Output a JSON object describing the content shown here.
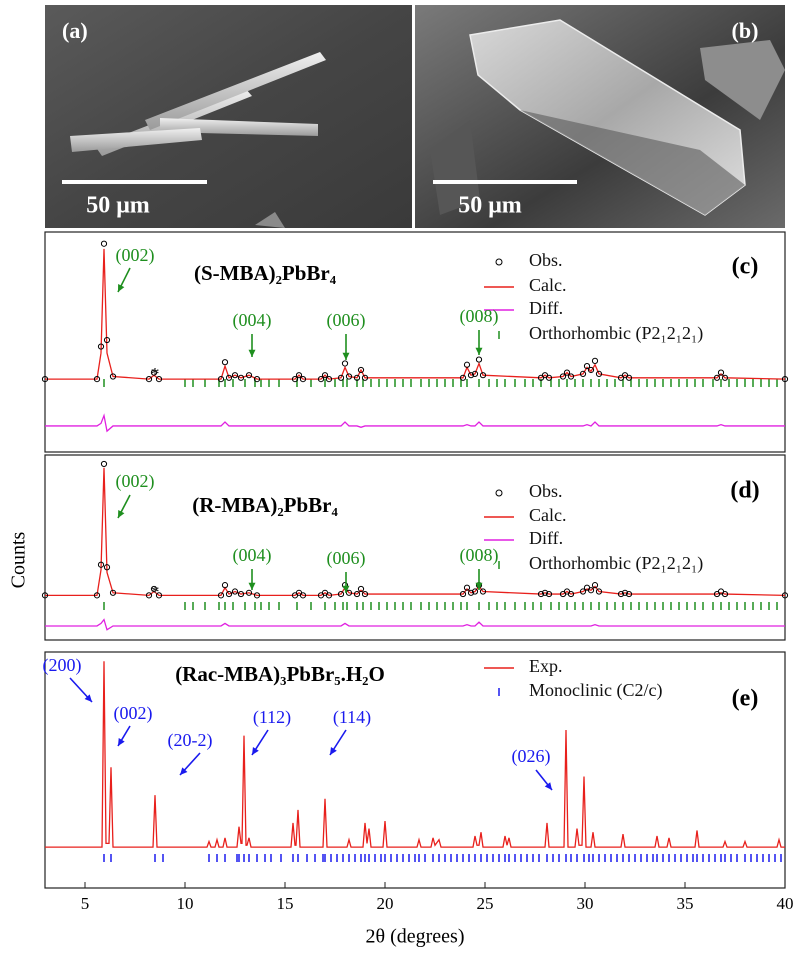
{
  "figure": {
    "images": [
      {
        "label": "(a)",
        "scale_bar": "50 μm"
      },
      {
        "label": "(b)",
        "scale_bar": "50 μm"
      }
    ]
  },
  "chart_data": [
    {
      "type": "line",
      "panel_label": "(c)",
      "title": "(S-MBA)₂PbBr₄",
      "xlim": [
        3,
        40
      ],
      "ylim": [
        -56,
        113
      ],
      "x": [
        3,
        5.6,
        5.8,
        5.95,
        6.1,
        6.4,
        8.2,
        8.45,
        8.7,
        11.8,
        12.0,
        12.2,
        12.5,
        12.8,
        13.2,
        13.6,
        15.5,
        15.7,
        15.9,
        16.8,
        17.0,
        17.2,
        17.8,
        18.0,
        18.2,
        18.6,
        18.8,
        19.0,
        23.9,
        24.1,
        24.3,
        24.5,
        24.7,
        24.9,
        27.8,
        28.0,
        28.2,
        28.9,
        29.1,
        29.3,
        29.9,
        30.1,
        30.3,
        30.5,
        30.7,
        31.8,
        32.0,
        32.2,
        36.6,
        36.8,
        37.0,
        40
      ],
      "series": [
        {
          "name": "Obs.",
          "color": "#000000",
          "marker": "circle",
          "values": [
            0,
            0,
            25,
            104,
            30,
            2,
            0,
            5,
            0,
            0,
            13,
            1,
            3,
            1,
            3,
            0,
            0,
            3,
            0,
            0,
            3,
            0,
            1,
            12,
            2,
            1,
            7,
            1,
            1,
            11,
            3,
            4,
            15,
            3,
            1,
            3,
            1,
            2,
            5,
            2,
            4,
            10,
            7,
            14,
            4,
            1,
            3,
            1,
            1,
            5,
            1,
            0
          ]
        },
        {
          "name": "Calc.",
          "color": "#e8201c",
          "values": [
            0,
            0,
            20,
            100,
            20,
            2,
            0,
            3,
            0,
            0,
            10,
            1,
            3,
            1,
            3,
            0,
            0,
            3,
            0,
            0,
            3,
            0,
            1,
            9,
            2,
            1,
            7,
            1,
            1,
            9,
            3,
            4,
            12,
            3,
            1,
            3,
            1,
            2,
            5,
            2,
            4,
            9,
            6,
            11,
            4,
            1,
            3,
            1,
            1,
            4,
            1,
            0
          ]
        },
        {
          "name": "Diff.",
          "color": "#e020e0",
          "values": [
            -36,
            -36,
            -34,
            -28,
            -40,
            -36,
            -36,
            -36,
            -36,
            -36,
            -33,
            -36,
            -36,
            -36,
            -36,
            -36,
            -36,
            -36,
            -36,
            -36,
            -36,
            -36,
            -36,
            -33,
            -36,
            -36,
            -37,
            -36,
            -36,
            -35,
            -36,
            -36,
            -33,
            -36,
            -36,
            -36,
            -36,
            -36,
            -36,
            -36,
            -36,
            -35,
            -36,
            -33,
            -36,
            -36,
            -36,
            -36,
            -36,
            -35,
            -36,
            -36
          ]
        }
      ],
      "reflections": {
        "name": "Orthorhombic (P2₁2₁2₁)",
        "color": "#1f8f1f",
        "x": [
          5.95,
          10.0,
          10.4,
          11.0,
          11.7,
          12.0,
          12.4,
          13.0,
          13.5,
          13.8,
          14.2,
          14.7,
          15.6,
          16.3,
          17.0,
          17.5,
          17.9,
          18.1,
          18.6,
          18.9,
          19.3,
          19.7,
          20.1,
          20.5,
          20.9,
          21.3,
          21.8,
          22.2,
          22.6,
          23.0,
          23.4,
          23.8,
          24.1,
          24.7,
          25.2,
          25.6,
          26.0,
          26.5,
          27.0,
          27.4,
          27.8,
          28.3,
          28.7,
          29.1,
          29.5,
          29.9,
          30.3,
          30.7,
          31.1,
          31.5,
          31.9,
          32.3,
          32.7,
          33.1,
          33.5,
          33.9,
          34.3,
          34.7,
          35.1,
          35.5,
          35.9,
          36.4,
          36.8,
          37.2,
          37.6,
          38.0,
          38.4,
          38.8,
          39.2,
          39.6
        ]
      },
      "annotation_color": "#1f8f1f",
      "annotations": [
        "(002)",
        "*",
        "(004)",
        "(006)",
        "(008)"
      ]
    },
    {
      "type": "line",
      "panel_label": "(d)",
      "title": "(R-MBA)₂PbBr₄",
      "ylabel": "Counts",
      "xlim": [
        3,
        40
      ],
      "ylim": [
        -35,
        110
      ],
      "x": [
        3,
        5.6,
        5.8,
        5.95,
        6.1,
        6.4,
        8.2,
        8.45,
        8.7,
        11.8,
        12.0,
        12.2,
        12.5,
        12.8,
        13.2,
        13.6,
        15.5,
        15.7,
        15.9,
        16.8,
        17.0,
        17.2,
        17.8,
        18.0,
        18.2,
        18.6,
        18.8,
        19.0,
        23.9,
        24.1,
        24.3,
        24.5,
        24.7,
        24.9,
        27.8,
        28.0,
        28.2,
        28.9,
        29.1,
        29.3,
        29.9,
        30.1,
        30.3,
        30.5,
        30.7,
        31.8,
        32.0,
        32.2,
        36.6,
        36.8,
        37.0,
        40
      ],
      "series": [
        {
          "name": "Obs.",
          "color": "#000000",
          "marker": "circle",
          "values": [
            0,
            0,
            24,
            103,
            22,
            2,
            0,
            5,
            0,
            0,
            8,
            1,
            3,
            1,
            2,
            0,
            0,
            2,
            0,
            0,
            2,
            0,
            1,
            8,
            2,
            1,
            5,
            1,
            1,
            6,
            2,
            3,
            8,
            3,
            1,
            2,
            1,
            1,
            3,
            1,
            3,
            6,
            4,
            8,
            3,
            1,
            2,
            1,
            1,
            3,
            1,
            0
          ]
        },
        {
          "name": "Calc.",
          "color": "#e8201c",
          "values": [
            0,
            0,
            20,
            100,
            18,
            2,
            0,
            3,
            0,
            0,
            6,
            1,
            3,
            1,
            2,
            0,
            0,
            2,
            0,
            0,
            2,
            0,
            1,
            6,
            2,
            1,
            4,
            1,
            1,
            5,
            2,
            3,
            7,
            3,
            1,
            2,
            1,
            1,
            3,
            1,
            3,
            5,
            4,
            7,
            3,
            1,
            2,
            1,
            1,
            2,
            1,
            0
          ]
        },
        {
          "name": "Diff.",
          "color": "#e020e0",
          "values": [
            -24,
            -24,
            -22,
            -19,
            -27,
            -24,
            -24,
            -24,
            -24,
            -24,
            -22,
            -24,
            -24,
            -24,
            -24,
            -24,
            -24,
            -24,
            -24,
            -24,
            -24,
            -24,
            -24,
            -22,
            -24,
            -24,
            -24,
            -24,
            -24,
            -23,
            -24,
            -24,
            -21,
            -24,
            -24,
            -24,
            -24,
            -24,
            -24,
            -24,
            -24,
            -24,
            -24,
            -23,
            -24,
            -24,
            -24,
            -24,
            -24,
            -24,
            -24,
            -24
          ]
        }
      ],
      "reflections": {
        "name": "Orthorhombic (P2₁2₁2₁)",
        "color": "#1f8f1f",
        "x": [
          5.95,
          10.0,
          10.4,
          11.0,
          11.7,
          12.0,
          12.4,
          13.0,
          13.5,
          13.8,
          14.2,
          14.7,
          15.6,
          16.3,
          17.0,
          17.5,
          17.9,
          18.1,
          18.6,
          18.9,
          19.3,
          19.7,
          20.1,
          20.5,
          20.9,
          21.3,
          21.8,
          22.2,
          22.6,
          23.0,
          23.4,
          23.8,
          24.1,
          24.7,
          25.2,
          25.6,
          26.0,
          26.5,
          27.0,
          27.4,
          27.8,
          28.3,
          28.7,
          29.1,
          29.5,
          29.9,
          30.3,
          30.7,
          31.1,
          31.5,
          31.9,
          32.3,
          32.7,
          33.1,
          33.5,
          33.9,
          34.3,
          34.7,
          35.1,
          35.5,
          35.9,
          36.4,
          36.8,
          37.2,
          37.6,
          38.0,
          38.4,
          38.8,
          39.2,
          39.6
        ]
      },
      "annotation_color": "#1f8f1f",
      "annotations": [
        "(002)",
        "*",
        "(004)",
        "(006)",
        "(008)"
      ]
    },
    {
      "type": "line",
      "panel_label": "(e)",
      "title": "(Rac-MBA)₃PbBr₅.H₂O",
      "xlabel": "2θ (degrees)",
      "xlim": [
        3,
        40
      ],
      "ylim": [
        -22,
        105
      ],
      "xticks": [
        5,
        10,
        15,
        20,
        25,
        30,
        35,
        40
      ],
      "x": [
        3,
        5.85,
        5.95,
        6.05,
        6.2,
        6.3,
        6.4,
        8.4,
        8.5,
        8.6,
        11.1,
        11.2,
        11.3,
        11.5,
        11.6,
        11.7,
        11.9,
        12.0,
        12.1,
        12.6,
        12.7,
        12.8,
        12.85,
        12.95,
        13.05,
        13.1,
        13.2,
        13.3,
        15.3,
        15.4,
        15.5,
        15.55,
        15.65,
        15.75,
        16.9,
        17.0,
        17.1,
        18.1,
        18.2,
        18.3,
        18.9,
        19.0,
        19.1,
        19.2,
        19.3,
        19.9,
        20.0,
        20.1,
        21.6,
        21.7,
        21.8,
        22.3,
        22.4,
        22.5,
        22.7,
        22.8,
        24.4,
        24.5,
        24.6,
        24.7,
        24.8,
        24.9,
        25.9,
        26.0,
        26.1,
        26.2,
        26.3,
        28.0,
        28.1,
        28.2,
        28.95,
        29.05,
        29.15,
        29.5,
        29.6,
        29.7,
        29.85,
        29.95,
        30.05,
        30.3,
        30.4,
        30.5,
        31.8,
        31.9,
        32.0,
        33.5,
        33.6,
        33.7,
        34.1,
        34.2,
        34.3,
        35.5,
        35.6,
        35.7,
        36.9,
        37.0,
        37.1,
        37.9,
        38.0,
        38.1,
        39.6,
        39.7,
        39.8,
        40
      ],
      "series": [
        {
          "name": "Exp.",
          "color": "#e8201c",
          "values": [
            0,
            0,
            100,
            2,
            2,
            43,
            0,
            0,
            28,
            0,
            0,
            3,
            0,
            0,
            4,
            0,
            0,
            5,
            0,
            0,
            11,
            2,
            2,
            60,
            1,
            1,
            5,
            0,
            0,
            13,
            1,
            1,
            20,
            0,
            0,
            26,
            0,
            0,
            4,
            0,
            0,
            13,
            2,
            10,
            0,
            0,
            14,
            0,
            0,
            4,
            0,
            0,
            5,
            1,
            4,
            0,
            0,
            6,
            1,
            1,
            8,
            0,
            0,
            6,
            1,
            5,
            0,
            0,
            13,
            0,
            0,
            63,
            0,
            0,
            10,
            1,
            1,
            38,
            0,
            0,
            8,
            0,
            0,
            7,
            0,
            0,
            6,
            0,
            0,
            5,
            0,
            0,
            9,
            0,
            0,
            3,
            0,
            0,
            3,
            0,
            0,
            4,
            0,
            0
          ]
        }
      ],
      "reflections": {
        "name": "Monoclinic (C2/c)",
        "color": "#1a1aee",
        "x": [
          5.95,
          6.3,
          8.5,
          8.9,
          11.2,
          11.6,
          12.0,
          12.6,
          12.7,
          12.95,
          13.2,
          13.6,
          14.0,
          14.3,
          14.8,
          15.4,
          15.65,
          16.1,
          16.5,
          16.9,
          17.0,
          17.3,
          17.6,
          17.9,
          18.2,
          18.5,
          18.8,
          19.0,
          19.2,
          19.5,
          19.8,
          20.0,
          20.3,
          20.6,
          20.9,
          21.2,
          21.5,
          21.7,
          22.0,
          22.4,
          22.7,
          23.0,
          23.3,
          23.6,
          23.9,
          24.2,
          24.5,
          24.8,
          25.1,
          25.4,
          25.7,
          26.0,
          26.2,
          26.5,
          26.8,
          27.1,
          27.4,
          27.7,
          28.1,
          28.4,
          28.7,
          29.05,
          29.3,
          29.6,
          29.95,
          30.2,
          30.4,
          30.7,
          31.0,
          31.3,
          31.6,
          31.9,
          32.2,
          32.5,
          32.8,
          33.1,
          33.4,
          33.6,
          33.9,
          34.2,
          34.5,
          34.8,
          35.1,
          35.4,
          35.6,
          35.9,
          36.2,
          36.5,
          36.8,
          37.0,
          37.3,
          37.6,
          38.0,
          38.3,
          38.6,
          38.9,
          39.2,
          39.5,
          39.8
        ]
      },
      "annotation_color": "#1a1aee",
      "annotations": [
        "(200)",
        "(002)",
        "(20-2)",
        "(112)",
        "(114)",
        "(026)"
      ]
    }
  ]
}
